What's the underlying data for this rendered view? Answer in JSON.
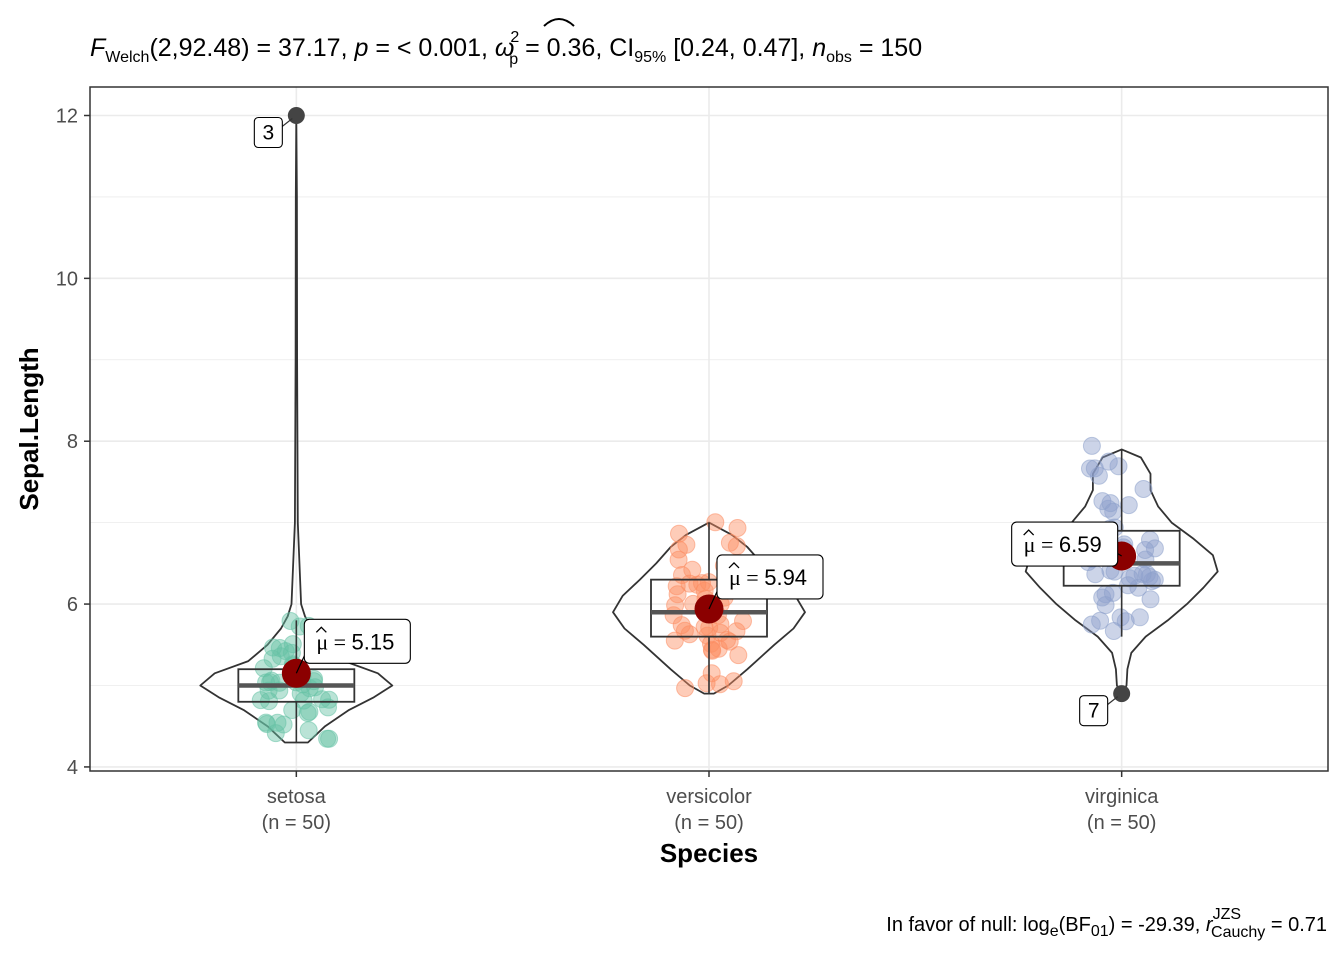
{
  "chart_data": {
    "type": "violin",
    "xlabel": "Species",
    "ylabel": "Sepal.Length",
    "ylim": [
      3.95,
      12.35
    ],
    "yticks": [
      4,
      6,
      8,
      10,
      12
    ],
    "grid": true,
    "header": {
      "stat_symbol": "F",
      "stat_sub": "Welch",
      "df_stat": "(2,92.48) = 37.17, ",
      "p_symbol": "p",
      "p_text": " = < 0.001, ",
      "effect_symbol": "ω",
      "effect_sup": "2",
      "effect_sub": "p",
      "effect_text": " = 0.36, CI",
      "ci_sub": "95%",
      "ci_text": " [0.24, 0.47], ",
      "n_symbol": "n",
      "n_sub": "obs",
      "n_text": " = 150"
    },
    "footer": {
      "prefix": "In favor of null: log",
      "log_sub": "e",
      "bf_text": "(BF",
      "bf_sub": "01",
      "bf_close": ") = -29.39, ",
      "r_symbol": "r",
      "r_sup": "JZS",
      "r_sub": "Cauchy",
      "r_text": " = 0.71"
    },
    "groups": [
      {
        "name": "setosa",
        "n_label": "(n = 50)",
        "color": "#66C2A5",
        "mean": 5.15,
        "mean_label": "5.15",
        "box": {
          "min": 4.3,
          "q1": 4.8,
          "median": 5.0,
          "q3": 5.2,
          "max": 5.8
        },
        "outliers": [
          {
            "value": 12.0,
            "label": "3"
          }
        ],
        "points": [
          5.1,
          4.9,
          4.7,
          4.6,
          5.0,
          5.4,
          4.6,
          5.0,
          4.4,
          4.9,
          5.4,
          4.8,
          4.8,
          4.3,
          5.8,
          5.7,
          5.4,
          5.1,
          5.7,
          5.1,
          5.4,
          5.1,
          4.6,
          5.1,
          4.8,
          5.0,
          5.0,
          5.2,
          5.2,
          4.7,
          4.8,
          5.4,
          5.2,
          5.5,
          4.9,
          5.0,
          5.5,
          4.9,
          4.4,
          5.1,
          5.0,
          4.5,
          4.4,
          5.0,
          5.1,
          4.8,
          5.1,
          4.6,
          5.3
        ],
        "violin": [
          [
            4.3,
            0.12
          ],
          [
            4.5,
            0.3
          ],
          [
            4.7,
            0.55
          ],
          [
            4.85,
            0.8
          ],
          [
            5.0,
            1.0
          ],
          [
            5.15,
            0.85
          ],
          [
            5.3,
            0.5
          ],
          [
            5.5,
            0.3
          ],
          [
            5.7,
            0.16
          ],
          [
            5.85,
            0.09
          ],
          [
            6.0,
            0.05
          ],
          [
            7.0,
            0.015
          ],
          [
            9.0,
            0.008
          ],
          [
            11.0,
            0.006
          ],
          [
            12.0,
            0.0
          ]
        ]
      },
      {
        "name": "versicolor",
        "n_label": "(n = 50)",
        "color": "#FC8D62",
        "mean": 5.94,
        "mean_label": "5.94",
        "box": {
          "min": 4.9,
          "q1": 5.6,
          "median": 5.9,
          "q3": 6.3,
          "max": 7.0
        },
        "outliers": [],
        "points": [
          7.0,
          6.4,
          6.9,
          5.5,
          6.5,
          5.7,
          6.3,
          4.9,
          6.6,
          5.2,
          5.0,
          5.9,
          6.0,
          6.1,
          5.6,
          6.7,
          5.6,
          5.8,
          6.2,
          5.6,
          5.9,
          6.1,
          6.3,
          6.1,
          6.4,
          6.6,
          6.8,
          6.7,
          6.0,
          5.7,
          5.5,
          5.5,
          5.8,
          6.0,
          5.4,
          6.0,
          6.7,
          6.3,
          5.6,
          5.5,
          5.5,
          6.1,
          5.8,
          5.0,
          5.6,
          5.7,
          5.7,
          6.2,
          5.1,
          5.7
        ],
        "violin": [
          [
            4.9,
            0.05
          ],
          [
            5.0,
            0.2
          ],
          [
            5.2,
            0.4
          ],
          [
            5.5,
            0.68
          ],
          [
            5.7,
            0.88
          ],
          [
            5.9,
            1.0
          ],
          [
            6.1,
            0.9
          ],
          [
            6.3,
            0.72
          ],
          [
            6.5,
            0.55
          ],
          [
            6.7,
            0.4
          ],
          [
            6.85,
            0.24
          ],
          [
            7.0,
            0.0
          ]
        ]
      },
      {
        "name": "virginica",
        "n_label": "(n = 50)",
        "color": "#8DA0CB",
        "mean": 6.59,
        "mean_label": "6.59",
        "box": {
          "min": 5.6,
          "q1": 6.225,
          "median": 6.5,
          "q3": 6.9,
          "max": 7.9
        },
        "outliers": [
          {
            "value": 4.9,
            "label": "7"
          }
        ],
        "points": [
          6.3,
          5.8,
          7.1,
          6.3,
          6.5,
          7.6,
          7.3,
          6.7,
          7.2,
          6.5,
          6.4,
          6.8,
          5.7,
          5.8,
          6.4,
          6.5,
          7.7,
          7.7,
          6.0,
          6.9,
          5.6,
          7.7,
          6.3,
          6.7,
          7.2,
          6.2,
          6.1,
          6.4,
          7.2,
          7.4,
          7.9,
          6.4,
          6.3,
          6.1,
          7.7,
          6.3,
          6.4,
          6.0,
          6.9,
          6.7,
          6.9,
          5.8,
          6.8,
          6.7,
          6.7,
          6.3,
          6.5,
          6.2,
          5.9
        ],
        "violin": [
          [
            4.9,
            0.0
          ],
          [
            5.0,
            0.05
          ],
          [
            5.2,
            0.06
          ],
          [
            5.4,
            0.1
          ],
          [
            5.6,
            0.25
          ],
          [
            5.8,
            0.48
          ],
          [
            6.0,
            0.68
          ],
          [
            6.2,
            0.85
          ],
          [
            6.4,
            1.0
          ],
          [
            6.6,
            0.95
          ],
          [
            6.8,
            0.75
          ],
          [
            7.0,
            0.52
          ],
          [
            7.2,
            0.38
          ],
          [
            7.4,
            0.3
          ],
          [
            7.6,
            0.3
          ],
          [
            7.8,
            0.2
          ],
          [
            7.9,
            0.0
          ]
        ]
      }
    ],
    "colors": {
      "mean_point": "#8B0000",
      "outlier_point": "#444444",
      "grid": "#EBEBEB",
      "outline": "#333333"
    }
  }
}
